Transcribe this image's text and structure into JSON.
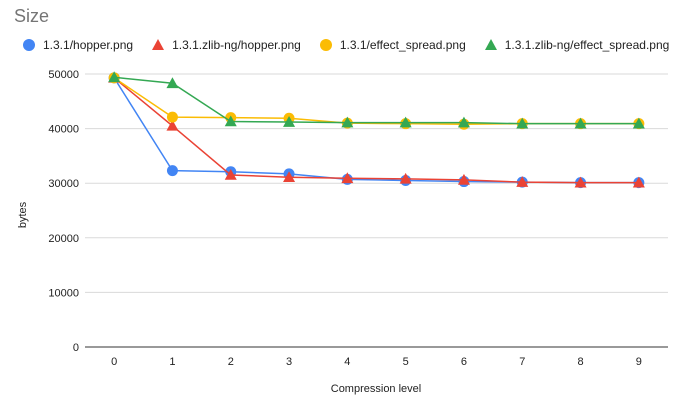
{
  "chart_data": {
    "type": "line",
    "title": "Size",
    "xlabel": "Compression level",
    "ylabel": "bytes",
    "x": [
      0,
      1,
      2,
      3,
      4,
      5,
      6,
      7,
      8,
      9
    ],
    "ylim": [
      0,
      50000
    ],
    "yticks": [
      0,
      10000,
      20000,
      30000,
      40000,
      50000
    ],
    "grid": true,
    "legend_position": "top",
    "series": [
      {
        "name": "1.3.1/hopper.png",
        "marker": "circle",
        "color": "#4285f4",
        "values": [
          49300,
          32300,
          32100,
          31700,
          30700,
          30500,
          30300,
          30200,
          30100,
          30100
        ]
      },
      {
        "name": "1.3.1.zlib-ng/hopper.png",
        "marker": "triangle",
        "color": "#ea4335",
        "values": [
          49300,
          40500,
          31500,
          31100,
          30900,
          30800,
          30600,
          30200,
          30100,
          30100
        ]
      },
      {
        "name": "1.3.1/effect_spread.png",
        "marker": "circle",
        "color": "#fbbc04",
        "values": [
          49300,
          42100,
          42000,
          41900,
          41000,
          40900,
          40800,
          40900,
          40900,
          40900
        ]
      },
      {
        "name": "1.3.1.zlib-ng/effect_spread.png",
        "marker": "triangle",
        "color": "#34a853",
        "values": [
          49400,
          48300,
          41300,
          41200,
          41100,
          41100,
          41100,
          40900,
          40900,
          40900
        ]
      }
    ]
  }
}
